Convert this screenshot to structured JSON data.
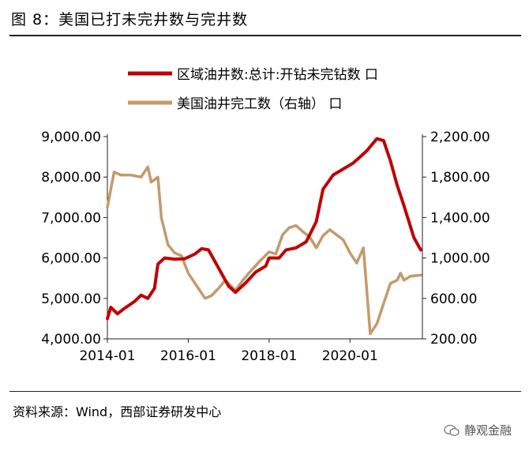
{
  "figure": {
    "title": "图 8：美国已打未完井数与完井数",
    "source": "资料来源：Wind，西部证券研发中心",
    "watermark": "静观金融"
  },
  "chart_data": {
    "type": "line",
    "title": "",
    "xlabel": "",
    "ylabel": "",
    "xticks": [
      "2014-01",
      "2016-01",
      "2018-01",
      "2020-01"
    ],
    "ylim_left": [
      4000,
      9000
    ],
    "ylim_right": [
      200,
      2200
    ],
    "yticks_left": [
      "4,000.00",
      "5,000.00",
      "6,000.00",
      "7,000.00",
      "8,000.00",
      "9,000.00"
    ],
    "yticks_right": [
      "200.00",
      "600.00",
      "1,000.00",
      "1,400.00",
      "1,800.00",
      "2,200.00"
    ],
    "legend": {
      "placement": "top"
    },
    "series": [
      {
        "name": "区域油井数:总计:开钻未完钻数 口",
        "axis": "left",
        "color": "#C00000",
        "points": [
          [
            "2014-01",
            4500
          ],
          [
            "2014-02",
            4780
          ],
          [
            "2014-04",
            4620
          ],
          [
            "2014-06",
            4750
          ],
          [
            "2014-09",
            4920
          ],
          [
            "2014-11",
            5080
          ],
          [
            "2015-01",
            5000
          ],
          [
            "2015-03",
            5250
          ],
          [
            "2015-04",
            5850
          ],
          [
            "2015-06",
            6000
          ],
          [
            "2015-09",
            5970
          ],
          [
            "2015-12",
            5980
          ],
          [
            "2016-03",
            6100
          ],
          [
            "2016-05",
            6230
          ],
          [
            "2016-07",
            6200
          ],
          [
            "2016-09",
            5900
          ],
          [
            "2016-11",
            5600
          ],
          [
            "2017-01",
            5300
          ],
          [
            "2017-03",
            5150
          ],
          [
            "2017-06",
            5380
          ],
          [
            "2017-09",
            5650
          ],
          [
            "2017-12",
            5800
          ],
          [
            "2018-01",
            6000
          ],
          [
            "2018-04",
            6000
          ],
          [
            "2018-06",
            6200
          ],
          [
            "2018-09",
            6250
          ],
          [
            "2018-12",
            6400
          ],
          [
            "2019-03",
            6900
          ],
          [
            "2019-05",
            7700
          ],
          [
            "2019-08",
            8050
          ],
          [
            "2019-11",
            8200
          ],
          [
            "2020-02",
            8350
          ],
          [
            "2020-04",
            8500
          ],
          [
            "2020-06",
            8650
          ],
          [
            "2020-08",
            8850
          ],
          [
            "2020-09",
            8950
          ],
          [
            "2020-11",
            8900
          ],
          [
            "2021-01",
            8400
          ],
          [
            "2021-03",
            7800
          ],
          [
            "2021-05",
            7300
          ],
          [
            "2021-08",
            6500
          ],
          [
            "2021-10",
            6200
          ]
        ]
      },
      {
        "name": "美国油井完工数（右轴） 口",
        "axis": "right",
        "color": "#C49A6C",
        "points": [
          [
            "2014-01",
            1500
          ],
          [
            "2014-03",
            1850
          ],
          [
            "2014-05",
            1820
          ],
          [
            "2014-08",
            1820
          ],
          [
            "2014-11",
            1800
          ],
          [
            "2015-01",
            1900
          ],
          [
            "2015-02",
            1750
          ],
          [
            "2015-04",
            1800
          ],
          [
            "2015-05",
            1400
          ],
          [
            "2015-07",
            1130
          ],
          [
            "2015-09",
            1050
          ],
          [
            "2015-11",
            1020
          ],
          [
            "2016-01",
            850
          ],
          [
            "2016-04",
            700
          ],
          [
            "2016-06",
            600
          ],
          [
            "2016-08",
            630
          ],
          [
            "2016-10",
            700
          ],
          [
            "2016-12",
            780
          ],
          [
            "2017-03",
            680
          ],
          [
            "2017-05",
            770
          ],
          [
            "2017-07",
            850
          ],
          [
            "2017-10",
            960
          ],
          [
            "2018-01",
            1060
          ],
          [
            "2018-03",
            1040
          ],
          [
            "2018-05",
            1230
          ],
          [
            "2018-07",
            1300
          ],
          [
            "2018-09",
            1320
          ],
          [
            "2018-11",
            1260
          ],
          [
            "2019-01",
            1210
          ],
          [
            "2019-03",
            1100
          ],
          [
            "2019-05",
            1220
          ],
          [
            "2019-07",
            1280
          ],
          [
            "2019-09",
            1230
          ],
          [
            "2019-11",
            1180
          ],
          [
            "2020-01",
            1050
          ],
          [
            "2020-03",
            950
          ],
          [
            "2020-05",
            1100
          ],
          [
            "2020-07",
            250
          ],
          [
            "2020-09",
            350
          ],
          [
            "2020-11",
            550
          ],
          [
            "2021-01",
            750
          ],
          [
            "2021-03",
            780
          ],
          [
            "2021-04",
            850
          ],
          [
            "2021-05",
            780
          ],
          [
            "2021-07",
            820
          ],
          [
            "2021-10",
            830
          ]
        ]
      }
    ]
  }
}
